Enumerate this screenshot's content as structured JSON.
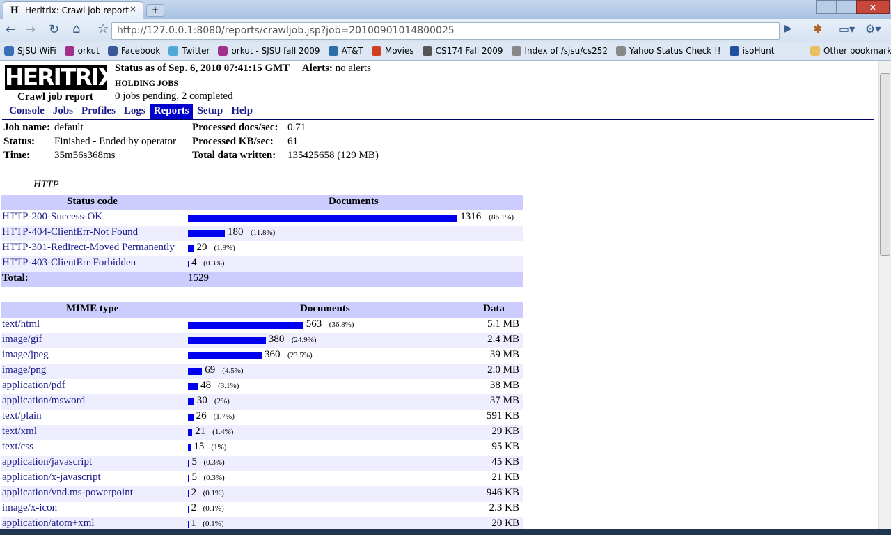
{
  "browser": {
    "tab_title": "Heritrix: Crawl job report",
    "url": "http://127.0.0.1:8080/reports/crawljob.jsp?job=20100901014800025",
    "bookmarks": [
      "SJSU WiFi",
      "orkut",
      "Facebook",
      "Twitter",
      "orkut - SJSU fall 2009",
      "AT&T",
      "Movies",
      "CS174 Fall 2009",
      "Index of /sjsu/cs252",
      "Yahoo Status Check !!",
      "isoHunt"
    ],
    "other_bookmarks": "Other bookmarks"
  },
  "header": {
    "logo": "HERITRIX",
    "subtitle": "Crawl job report",
    "status_label": "Status as of",
    "status_time": "Sep. 6, 2010 07:41:15 GMT",
    "alerts_label": "Alerts:",
    "alerts": "no alerts",
    "holding": "HOLDING JOBS",
    "jobs_prefix": "0 jobs",
    "pending": "pending",
    "jobs_middle": ", 2",
    "completed": "completed"
  },
  "nav": {
    "items": [
      "Console",
      "Jobs",
      "Profiles",
      "Logs",
      "Reports",
      "Setup",
      "Help"
    ],
    "active": "Reports"
  },
  "job": {
    "left": [
      [
        "Job name:",
        "default"
      ],
      [
        "Status:",
        "Finished - Ended by operator"
      ],
      [
        "Time:",
        "35m56s368ms"
      ]
    ],
    "right": [
      [
        "Processed docs/sec:",
        "0.71"
      ],
      [
        "Processed KB/sec:",
        "61"
      ],
      [
        "Total data written:",
        "135425658 (129 MB)"
      ]
    ]
  },
  "http": {
    "legend": "HTTP",
    "headers": [
      "Status code",
      "Documents"
    ],
    "rows": [
      {
        "code": "HTTP-200-Success-OK",
        "count": 1316,
        "percent": "(86.1%)"
      },
      {
        "code": "HTTP-404-ClientErr-Not Found",
        "count": 180,
        "percent": "(11.8%)"
      },
      {
        "code": "HTTP-301-Redirect-Moved Permanently",
        "count": 29,
        "percent": "(1.9%)"
      },
      {
        "code": "HTTP-403-ClientErr-Forbidden",
        "count": 4,
        "percent": "(0.3%)"
      }
    ],
    "total_label": "Total:",
    "total": 1529
  },
  "mime": {
    "headers": [
      "MIME type",
      "Documents",
      "Data"
    ],
    "rows": [
      {
        "type": "text/html",
        "count": 563,
        "percent": "(36.8%)",
        "data": "5.1 MB"
      },
      {
        "type": "image/gif",
        "count": 380,
        "percent": "(24.9%)",
        "data": "2.4 MB"
      },
      {
        "type": "image/jpeg",
        "count": 360,
        "percent": "(23.5%)",
        "data": "39 MB"
      },
      {
        "type": "image/png",
        "count": 69,
        "percent": "(4.5%)",
        "data": "2.0 MB"
      },
      {
        "type": "application/pdf",
        "count": 48,
        "percent": "(3.1%)",
        "data": "38 MB"
      },
      {
        "type": "application/msword",
        "count": 30,
        "percent": "(2%)",
        "data": "37 MB"
      },
      {
        "type": "text/plain",
        "count": 26,
        "percent": "(1.7%)",
        "data": "591 KB"
      },
      {
        "type": "text/xml",
        "count": 21,
        "percent": "(1.4%)",
        "data": "29 KB"
      },
      {
        "type": "text/css",
        "count": 15,
        "percent": "(1%)",
        "data": "95 KB"
      },
      {
        "type": "application/javascript",
        "count": 5,
        "percent": "(0.3%)",
        "data": "45 KB"
      },
      {
        "type": "application/x-javascript",
        "count": 5,
        "percent": "(0.3%)",
        "data": "21 KB"
      },
      {
        "type": "application/vnd.ms-powerpoint",
        "count": 2,
        "percent": "(0.1%)",
        "data": "946 KB"
      },
      {
        "type": "image/x-icon",
        "count": 2,
        "percent": "(0.1%)",
        "data": "2.3 KB"
      },
      {
        "type": "application/atom+xml",
        "count": 1,
        "percent": "(0.1%)",
        "data": "20 KB"
      }
    ]
  }
}
